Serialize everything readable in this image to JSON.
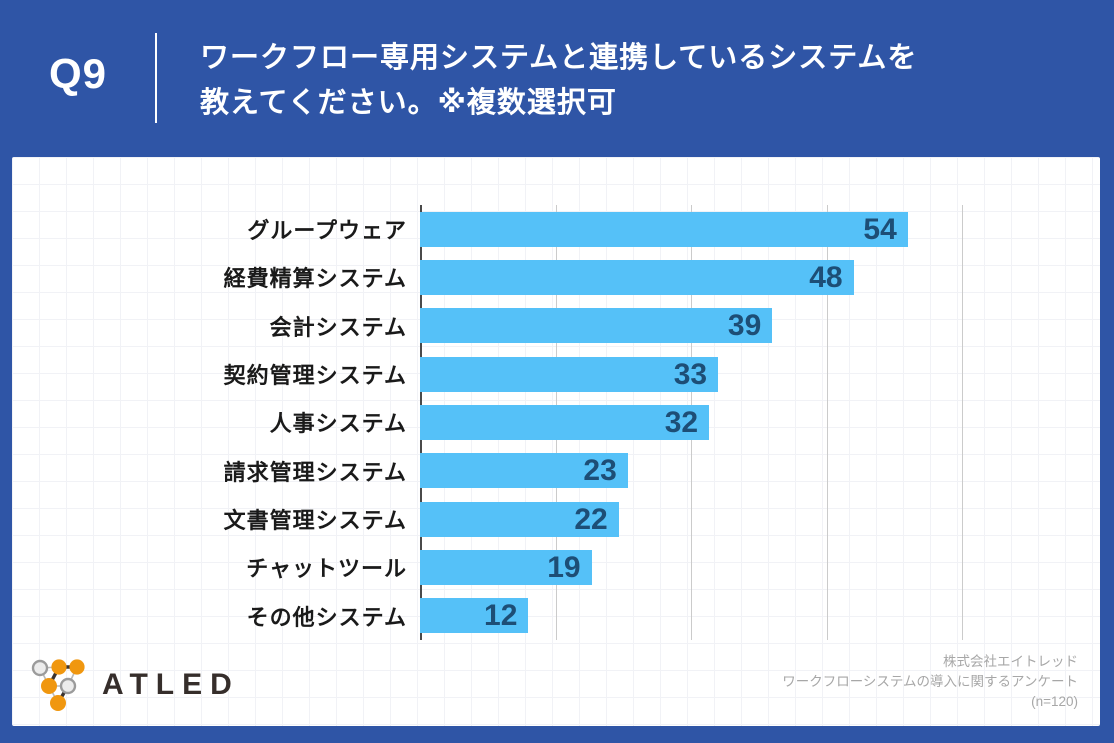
{
  "header": {
    "question_number": "Q9",
    "title_line1": "ワークフロー専用システムと連携しているシステムを",
    "title_line2": "教えてください。※複数選択可"
  },
  "chart_data": {
    "type": "bar",
    "orientation": "horizontal",
    "categories": [
      "グループウェア",
      "経費精算システム",
      "会計システム",
      "契約管理システム",
      "人事システム",
      "請求管理システム",
      "文書管理システム",
      "チャットツール",
      "その他システム"
    ],
    "values": [
      54,
      48,
      39,
      33,
      32,
      23,
      22,
      19,
      12
    ],
    "title": "",
    "xlabel": "",
    "ylabel": "",
    "xlim": [
      0,
      60
    ],
    "gridline_interval": 15,
    "grid": true,
    "legend": false,
    "value_labels": "inside-end"
  },
  "footer": {
    "logo_text": "ATLED",
    "source_line1": "株式会社エイトレッド",
    "source_line2": "ワークフローシステムの導入に関するアンケート",
    "source_line3": "(n=120)"
  },
  "colors": {
    "background_blue": "#2F55A6",
    "bar_blue": "#55C1F8",
    "value_navy": "#1D4E76",
    "axis_gray": "#4a4a4a",
    "gridline_gray": "#cbcbcb",
    "source_gray": "#a7a7a7",
    "logo_orange": "#F0970F",
    "logo_dark": "#3A3330"
  }
}
